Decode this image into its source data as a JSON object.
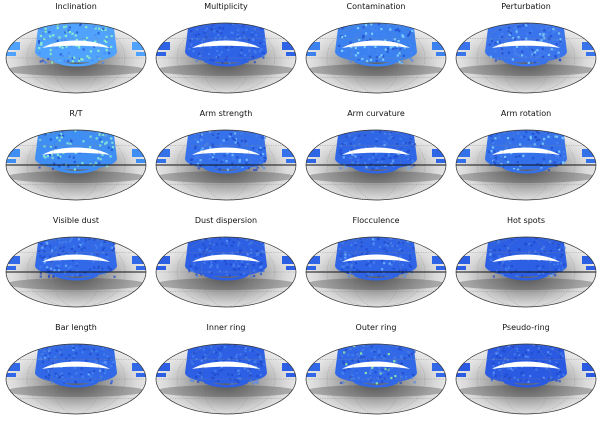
{
  "panels": [
    {
      "title": "Inclination",
      "color": "#4fa3ff",
      "hot": "#8df0c8",
      "hot_fraction": 0.45,
      "meridian_marked": false
    },
    {
      "title": "Multiplicity",
      "color": "#2f63e6",
      "hot": "#5a8dff",
      "hot_fraction": 0.05,
      "meridian_marked": false
    },
    {
      "title": "Contamination",
      "color": "#3b82f0",
      "hot": "#7fd0ff",
      "hot_fraction": 0.3,
      "meridian_marked": false
    },
    {
      "title": "Perturbation",
      "color": "#3a74ec",
      "hot": "#76c4ff",
      "hot_fraction": 0.25,
      "meridian_marked": false
    },
    {
      "title": "R/T",
      "color": "#3f8ef4",
      "hot": "#86e6d4",
      "hot_fraction": 0.4,
      "meridian_marked": true
    },
    {
      "title": "Arm strength",
      "color": "#3571ea",
      "hot": "#6fb6ff",
      "hot_fraction": 0.2,
      "meridian_marked": true
    },
    {
      "title": "Arm curvature",
      "color": "#2f66e6",
      "hot": "#6aa8ff",
      "hot_fraction": 0.15,
      "meridian_marked": true
    },
    {
      "title": "Arm rotation",
      "color": "#3470ea",
      "hot": "#7cc8ff",
      "hot_fraction": 0.25,
      "meridian_marked": true
    },
    {
      "title": "Visible dust",
      "color": "#3169e8",
      "hot": "#6aa8ff",
      "hot_fraction": 0.12,
      "meridian_marked": true
    },
    {
      "title": "Dust dispersion",
      "color": "#2c5fe4",
      "hot": "#5a8dff",
      "hot_fraction": 0.05,
      "meridian_marked": false
    },
    {
      "title": "Flocculence",
      "color": "#2f64e6",
      "hot": "#6cb0ff",
      "hot_fraction": 0.12,
      "meridian_marked": true
    },
    {
      "title": "Hot spots",
      "color": "#2c5fe4",
      "hot": "#6aa8ff",
      "hot_fraction": 0.08,
      "meridian_marked": true
    },
    {
      "title": "Bar length",
      "color": "#3068e8",
      "hot": "#6aa8ff",
      "hot_fraction": 0.12,
      "meridian_marked": false
    },
    {
      "title": "Inner ring",
      "color": "#2c5fe4",
      "hot": "#5a8dff",
      "hot_fraction": 0.06,
      "meridian_marked": false
    },
    {
      "title": "Outer ring",
      "color": "#3168e8",
      "hot": "#8de8a8",
      "hot_fraction": 0.15,
      "meridian_marked": false
    },
    {
      "title": "Pseudo-ring",
      "color": "#2b5ae2",
      "hot": "#5a8dff",
      "hot_fraction": 0.06,
      "meridian_marked": false
    }
  ]
}
